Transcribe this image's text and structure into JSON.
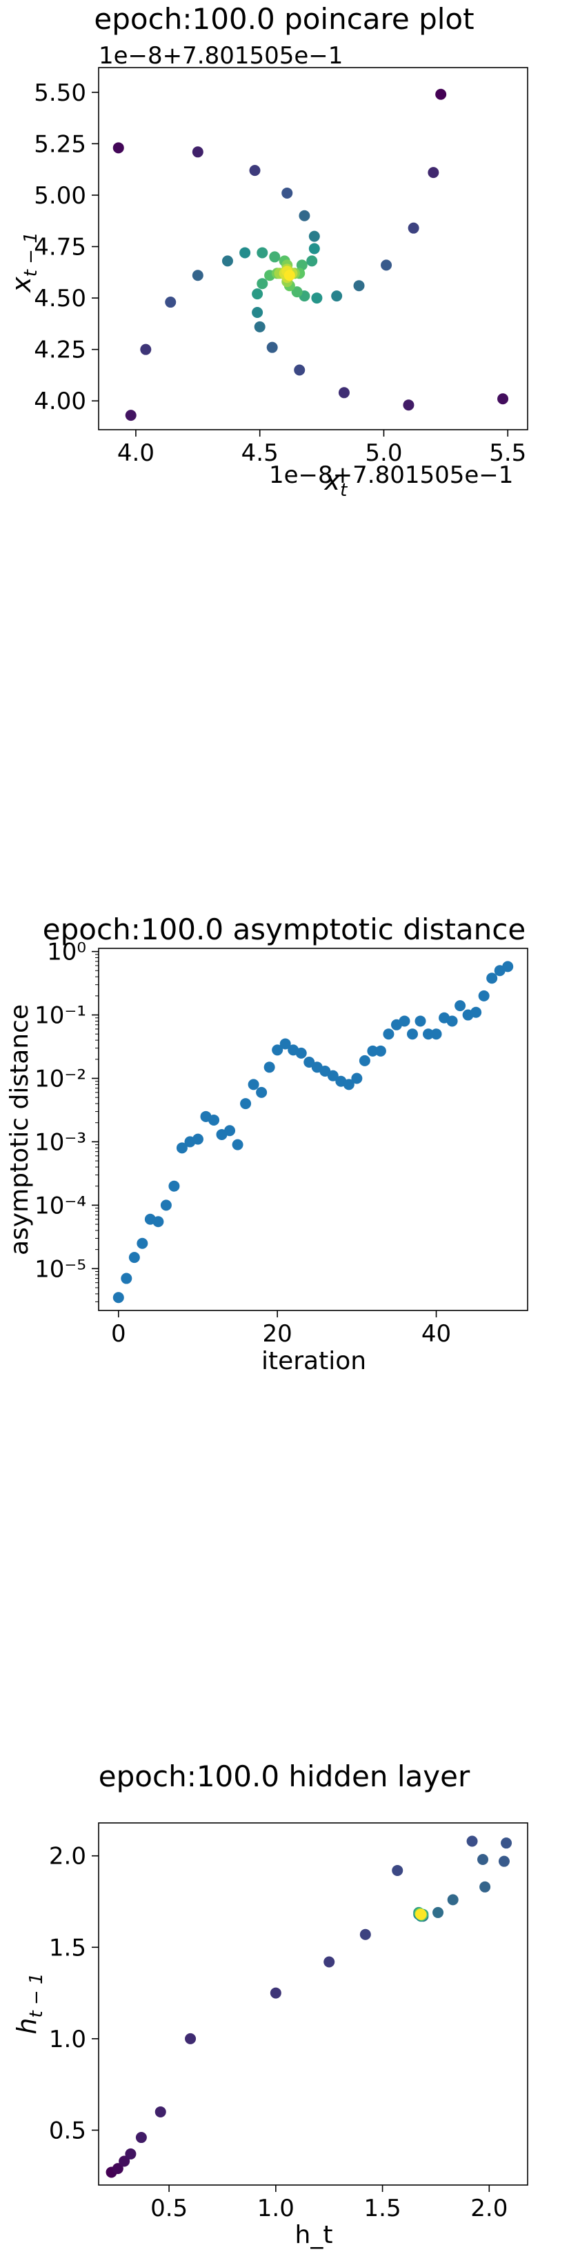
{
  "chart_data": [
    {
      "type": "scatter",
      "title": "epoch:100.0 poincare plot",
      "xlabel": "x_t",
      "ylabel": "x_{t-1}",
      "x_offset_label": "1e−8+7.801505e−1",
      "y_offset_label": "1e−8+7.801505e−1",
      "xlim": [
        3.85,
        5.58
      ],
      "ylim": [
        3.86,
        5.62
      ],
      "xticks": [
        4.0,
        4.5,
        5.0,
        5.5
      ],
      "xtick_labels": [
        "4.0",
        "4.5",
        "5.0",
        "5.5"
      ],
      "yticks": [
        4.0,
        4.25,
        4.5,
        4.75,
        5.0,
        5.25,
        5.5
      ],
      "ytick_labels": [
        "4.00",
        "4.25",
        "4.50",
        "4.75",
        "5.00",
        "5.25",
        "5.50"
      ],
      "colormap": [
        "#440154",
        "#3b528b",
        "#21918c",
        "#5ec962",
        "#fde725"
      ],
      "points": [
        {
          "x": 5.23,
          "y": 5.49,
          "c": 0.0
        },
        {
          "x": 3.93,
          "y": 5.23,
          "c": 0.02
        },
        {
          "x": 5.48,
          "y": 4.01,
          "c": 0.04
        },
        {
          "x": 3.98,
          "y": 3.93,
          "c": 0.06
        },
        {
          "x": 5.1,
          "y": 3.98,
          "c": 0.08
        },
        {
          "x": 4.25,
          "y": 5.21,
          "c": 0.1
        },
        {
          "x": 5.2,
          "y": 5.11,
          "c": 0.12
        },
        {
          "x": 4.84,
          "y": 4.04,
          "c": 0.14
        },
        {
          "x": 4.04,
          "y": 4.25,
          "c": 0.16
        },
        {
          "x": 4.48,
          "y": 5.12,
          "c": 0.18
        },
        {
          "x": 5.12,
          "y": 4.84,
          "c": 0.2
        },
        {
          "x": 4.66,
          "y": 4.15,
          "c": 0.22
        },
        {
          "x": 4.14,
          "y": 4.48,
          "c": 0.24
        },
        {
          "x": 4.61,
          "y": 5.01,
          "c": 0.26
        },
        {
          "x": 5.01,
          "y": 4.66,
          "c": 0.28
        },
        {
          "x": 4.55,
          "y": 4.26,
          "c": 0.3
        },
        {
          "x": 4.25,
          "y": 4.61,
          "c": 0.32
        },
        {
          "x": 4.68,
          "y": 4.9,
          "c": 0.34
        },
        {
          "x": 4.9,
          "y": 4.56,
          "c": 0.36
        },
        {
          "x": 4.5,
          "y": 4.36,
          "c": 0.38
        },
        {
          "x": 4.37,
          "y": 4.68,
          "c": 0.4
        },
        {
          "x": 4.72,
          "y": 4.8,
          "c": 0.42
        },
        {
          "x": 4.81,
          "y": 4.51,
          "c": 0.44
        },
        {
          "x": 4.49,
          "y": 4.43,
          "c": 0.46
        },
        {
          "x": 4.44,
          "y": 4.72,
          "c": 0.48
        },
        {
          "x": 4.72,
          "y": 4.74,
          "c": 0.5
        },
        {
          "x": 4.73,
          "y": 4.5,
          "c": 0.52
        },
        {
          "x": 4.49,
          "y": 4.52,
          "c": 0.54
        },
        {
          "x": 4.51,
          "y": 4.72,
          "c": 0.56
        },
        {
          "x": 4.71,
          "y": 4.68,
          "c": 0.58
        },
        {
          "x": 4.68,
          "y": 4.51,
          "c": 0.6
        },
        {
          "x": 4.51,
          "y": 4.57,
          "c": 0.62
        },
        {
          "x": 4.56,
          "y": 4.7,
          "c": 0.64
        },
        {
          "x": 4.67,
          "y": 4.66,
          "c": 0.66
        },
        {
          "x": 4.65,
          "y": 4.53,
          "c": 0.68
        },
        {
          "x": 4.54,
          "y": 4.61,
          "c": 0.7
        },
        {
          "x": 4.6,
          "y": 4.68,
          "c": 0.72
        },
        {
          "x": 4.66,
          "y": 4.62,
          "c": 0.74
        },
        {
          "x": 4.62,
          "y": 4.56,
          "c": 0.76
        },
        {
          "x": 4.57,
          "y": 4.62,
          "c": 0.78
        },
        {
          "x": 4.61,
          "y": 4.66,
          "c": 0.8
        },
        {
          "x": 4.64,
          "y": 4.62,
          "c": 0.82
        },
        {
          "x": 4.61,
          "y": 4.58,
          "c": 0.84
        },
        {
          "x": 4.58,
          "y": 4.62,
          "c": 0.86
        },
        {
          "x": 4.61,
          "y": 4.64,
          "c": 0.88
        },
        {
          "x": 4.63,
          "y": 4.62,
          "c": 0.9
        },
        {
          "x": 4.61,
          "y": 4.6,
          "c": 0.92
        },
        {
          "x": 4.6,
          "y": 4.62,
          "c": 0.94
        },
        {
          "x": 4.61,
          "y": 4.63,
          "c": 0.97
        },
        {
          "x": 4.62,
          "y": 4.61,
          "c": 1.0
        }
      ]
    },
    {
      "type": "scatter",
      "title": "epoch:100.0 asymptotic distance",
      "xlabel": "iteration",
      "ylabel": "asymptotic distance",
      "yscale": "log",
      "xlim": [
        -2.5,
        51.5
      ],
      "ylim_exp": [
        -5.66,
        0.05
      ],
      "xticks": [
        0,
        20,
        40
      ],
      "xtick_labels": [
        "0",
        "20",
        "40"
      ],
      "yticks_exp": [
        -5,
        -4,
        -3,
        -2,
        -1,
        0
      ],
      "ytick_labels": [
        "10⁻⁵",
        "10⁻⁴",
        "10⁻³",
        "10⁻²",
        "10⁻¹",
        "10⁰"
      ],
      "point_color": "#1f77b4",
      "x": [
        0,
        1,
        2,
        3,
        4,
        5,
        6,
        7,
        8,
        9,
        10,
        11,
        12,
        13,
        14,
        15,
        16,
        17,
        18,
        19,
        20,
        21,
        22,
        23,
        24,
        25,
        26,
        27,
        28,
        29,
        30,
        31,
        32,
        33,
        34,
        35,
        36,
        37,
        38,
        39,
        40,
        41,
        42,
        43,
        44,
        45,
        46,
        47,
        48,
        49
      ],
      "y": [
        3.5e-06,
        7e-06,
        1.5e-05,
        2.5e-05,
        6e-05,
        5.5e-05,
        0.0001,
        0.0002,
        0.0008,
        0.001,
        0.0011,
        0.0025,
        0.0022,
        0.0013,
        0.0015,
        0.0009,
        0.004,
        0.008,
        0.006,
        0.015,
        0.028,
        0.035,
        0.028,
        0.025,
        0.018,
        0.015,
        0.013,
        0.011,
        0.009,
        0.008,
        0.01,
        0.019,
        0.027,
        0.027,
        0.05,
        0.07,
        0.08,
        0.05,
        0.08,
        0.05,
        0.05,
        0.09,
        0.08,
        0.14,
        0.1,
        0.11,
        0.2,
        0.38,
        0.5,
        0.58
      ]
    },
    {
      "type": "scatter",
      "title": "epoch:100.0 hidden layer",
      "xlabel": "h_t",
      "ylabel": "h_{t-1}",
      "xlim": [
        0.17,
        2.18
      ],
      "ylim": [
        0.2,
        2.18
      ],
      "xticks": [
        0.5,
        1.0,
        1.5,
        2.0
      ],
      "xtick_labels": [
        "0.5",
        "1.0",
        "1.5",
        "2.0"
      ],
      "yticks": [
        0.5,
        1.0,
        1.5,
        2.0
      ],
      "ytick_labels": [
        "0.5",
        "1.0",
        "1.5",
        "2.0"
      ],
      "colormap": [
        "#440154",
        "#3b528b",
        "#21918c",
        "#5ec962",
        "#fde725"
      ],
      "points": [
        {
          "x": 0.23,
          "y": 0.27,
          "c": 0.0
        },
        {
          "x": 0.26,
          "y": 0.29,
          "c": 0.02
        },
        {
          "x": 0.29,
          "y": 0.33,
          "c": 0.04
        },
        {
          "x": 0.32,
          "y": 0.37,
          "c": 0.06
        },
        {
          "x": 0.37,
          "y": 0.46,
          "c": 0.08
        },
        {
          "x": 0.46,
          "y": 0.6,
          "c": 0.1
        },
        {
          "x": 0.6,
          "y": 1.0,
          "c": 0.13
        },
        {
          "x": 1.0,
          "y": 1.25,
          "c": 0.16
        },
        {
          "x": 1.25,
          "y": 1.42,
          "c": 0.18
        },
        {
          "x": 1.42,
          "y": 1.57,
          "c": 0.2
        },
        {
          "x": 1.57,
          "y": 1.92,
          "c": 0.22
        },
        {
          "x": 1.92,
          "y": 2.08,
          "c": 0.24
        },
        {
          "x": 2.08,
          "y": 2.07,
          "c": 0.26
        },
        {
          "x": 2.07,
          "y": 1.97,
          "c": 0.28
        },
        {
          "x": 1.97,
          "y": 1.98,
          "c": 0.3
        },
        {
          "x": 1.98,
          "y": 1.83,
          "c": 0.32
        },
        {
          "x": 1.83,
          "y": 1.76,
          "c": 0.34
        },
        {
          "x": 1.76,
          "y": 1.69,
          "c": 0.36
        },
        {
          "x": 1.69,
          "y": 1.67,
          "c": 0.4
        },
        {
          "x": 1.67,
          "y": 1.68,
          "c": 0.45
        },
        {
          "x": 1.68,
          "y": 1.67,
          "c": 0.5
        },
        {
          "x": 1.67,
          "y": 1.69,
          "c": 0.55
        },
        {
          "x": 1.69,
          "y": 1.68,
          "c": 0.6
        },
        {
          "x": 1.68,
          "y": 1.68,
          "c": 0.65
        },
        {
          "x": 1.685,
          "y": 1.675,
          "c": 0.7
        },
        {
          "x": 1.675,
          "y": 1.685,
          "c": 0.75
        },
        {
          "x": 1.68,
          "y": 1.68,
          "c": 0.8
        },
        {
          "x": 1.682,
          "y": 1.678,
          "c": 0.85
        },
        {
          "x": 1.678,
          "y": 1.682,
          "c": 0.9
        },
        {
          "x": 1.68,
          "y": 1.68,
          "c": 0.95
        },
        {
          "x": 1.68,
          "y": 1.68,
          "c": 1.0
        }
      ]
    }
  ]
}
